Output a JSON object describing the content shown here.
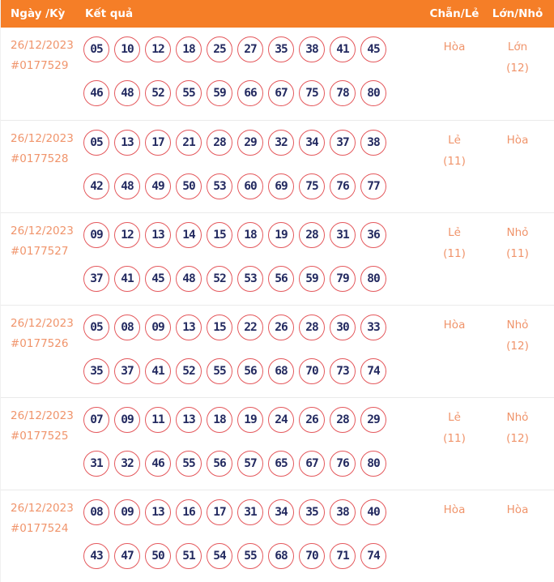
{
  "colors": {
    "header_bg": "#F57E27",
    "header_text": "#FFFFFF",
    "accent_text": "#F0946B",
    "ball_border": "#E4585C",
    "ball_text": "#232A60",
    "separator": "#EAEAEA",
    "page_bg": "#FFFFFF"
  },
  "header": {
    "col_date": "Ngày /Kỳ",
    "col_result": "Kết quả",
    "col_even_odd": "Chẵn/Lẻ",
    "col_big_small": "Lớn/Nhỏ"
  },
  "rows": [
    {
      "date": "26/12/2023",
      "period": "#0177529",
      "numbers_line1": [
        "05",
        "10",
        "12",
        "18",
        "25",
        "27",
        "35",
        "38",
        "41",
        "45"
      ],
      "numbers_line2": [
        "46",
        "48",
        "52",
        "55",
        "59",
        "66",
        "67",
        "75",
        "78",
        "80"
      ],
      "even_odd": {
        "value": "Hòa",
        "count": ""
      },
      "big_small": {
        "value": "Lớn",
        "count": "(12)"
      }
    },
    {
      "date": "26/12/2023",
      "period": "#0177528",
      "numbers_line1": [
        "05",
        "13",
        "17",
        "21",
        "28",
        "29",
        "32",
        "34",
        "37",
        "38"
      ],
      "numbers_line2": [
        "42",
        "48",
        "49",
        "50",
        "53",
        "60",
        "69",
        "75",
        "76",
        "77"
      ],
      "even_odd": {
        "value": "Lẻ",
        "count": "(11)"
      },
      "big_small": {
        "value": "Hòa",
        "count": ""
      }
    },
    {
      "date": "26/12/2023",
      "period": "#0177527",
      "numbers_line1": [
        "09",
        "12",
        "13",
        "14",
        "15",
        "18",
        "19",
        "28",
        "31",
        "36"
      ],
      "numbers_line2": [
        "37",
        "41",
        "45",
        "48",
        "52",
        "53",
        "56",
        "59",
        "79",
        "80"
      ],
      "even_odd": {
        "value": "Lẻ",
        "count": "(11)"
      },
      "big_small": {
        "value": "Nhỏ",
        "count": "(11)"
      }
    },
    {
      "date": "26/12/2023",
      "period": "#0177526",
      "numbers_line1": [
        "05",
        "08",
        "09",
        "13",
        "15",
        "22",
        "26",
        "28",
        "30",
        "33"
      ],
      "numbers_line2": [
        "35",
        "37",
        "41",
        "52",
        "55",
        "56",
        "68",
        "70",
        "73",
        "74"
      ],
      "even_odd": {
        "value": "Hòa",
        "count": ""
      },
      "big_small": {
        "value": "Nhỏ",
        "count": "(12)"
      }
    },
    {
      "date": "26/12/2023",
      "period": "#0177525",
      "numbers_line1": [
        "07",
        "09",
        "11",
        "13",
        "18",
        "19",
        "24",
        "26",
        "28",
        "29"
      ],
      "numbers_line2": [
        "31",
        "32",
        "46",
        "55",
        "56",
        "57",
        "65",
        "67",
        "76",
        "80"
      ],
      "even_odd": {
        "value": "Lẻ",
        "count": "(11)"
      },
      "big_small": {
        "value": "Nhỏ",
        "count": "(12)"
      }
    },
    {
      "date": "26/12/2023",
      "period": "#0177524",
      "numbers_line1": [
        "08",
        "09",
        "13",
        "16",
        "17",
        "31",
        "34",
        "35",
        "38",
        "40"
      ],
      "numbers_line2": [
        "43",
        "47",
        "50",
        "51",
        "54",
        "55",
        "68",
        "70",
        "71",
        "74"
      ],
      "even_odd": {
        "value": "Hòa",
        "count": ""
      },
      "big_small": {
        "value": "Hòa",
        "count": ""
      }
    }
  ]
}
